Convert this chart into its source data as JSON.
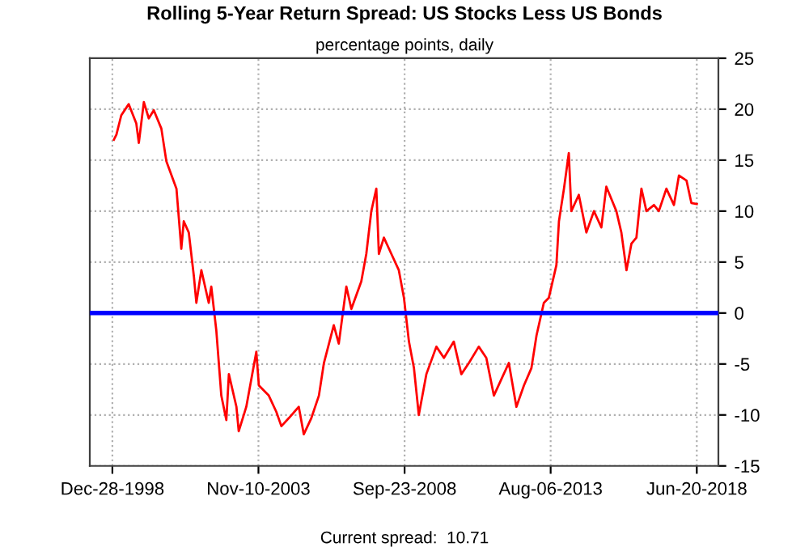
{
  "chart_data": {
    "type": "line",
    "title": "Rolling 5-Year Return Spread: US Stocks Less US Bonds",
    "subtitle": "percentage points, daily",
    "x": [
      "1999-01",
      "1999-02",
      "1999-04",
      "1999-07",
      "1999-10",
      "1999-11",
      "2000-01",
      "2000-03",
      "2000-05",
      "2000-08",
      "2000-10",
      "2001-02",
      "2001-04",
      "2001-05",
      "2001-07",
      "2001-09",
      "2001-10",
      "2001-12",
      "2002-03",
      "2002-04",
      "2002-06",
      "2002-08",
      "2002-10",
      "2002-11",
      "2003-02",
      "2003-03",
      "2003-06",
      "2003-10",
      "2003-11",
      "2004-03",
      "2004-06",
      "2004-08",
      "2004-11",
      "2005-03",
      "2005-05",
      "2005-08",
      "2005-11",
      "2006-01",
      "2006-05",
      "2006-07",
      "2006-10",
      "2006-12",
      "2007-04",
      "2007-06",
      "2007-08",
      "2007-10",
      "2007-11",
      "2008-01",
      "2008-04",
      "2008-07",
      "2008-09",
      "2008-11",
      "2009-01",
      "2009-03",
      "2009-06",
      "2009-10",
      "2010-01",
      "2010-05",
      "2010-08",
      "2010-11",
      "2011-03",
      "2011-06",
      "2011-09",
      "2011-12",
      "2012-03",
      "2012-06",
      "2012-09",
      "2012-12",
      "2013-02",
      "2013-05",
      "2013-07",
      "2013-10",
      "2013-11",
      "2014-01",
      "2014-03",
      "2014-04",
      "2014-07",
      "2014-10",
      "2015-01",
      "2015-04",
      "2015-06",
      "2015-10",
      "2015-12",
      "2016-02",
      "2016-04",
      "2016-06",
      "2016-08",
      "2016-10",
      "2017-01",
      "2017-03",
      "2017-06",
      "2017-09",
      "2017-11",
      "2018-02",
      "2018-04",
      "2018-06-20"
    ],
    "series": [
      {
        "color": "#ff0000",
        "values": [
          17.0,
          17.5,
          19.4,
          20.5,
          18.6,
          16.7,
          20.7,
          19.1,
          19.9,
          18.1,
          14.9,
          12.2,
          6.3,
          9.0,
          7.9,
          3.6,
          1.0,
          4.2,
          1.0,
          2.6,
          -1.7,
          -8.1,
          -10.5,
          -6.0,
          -9.2,
          -11.6,
          -9.2,
          -3.8,
          -7.1,
          -8.1,
          -9.7,
          -11.1,
          -10.3,
          -9.2,
          -11.9,
          -10.3,
          -8.1,
          -4.9,
          -1.2,
          -3.0,
          2.6,
          0.4,
          3.1,
          5.8,
          10.0,
          12.2,
          5.8,
          7.4,
          5.8,
          4.2,
          1.5,
          -2.8,
          -5.4,
          -10.0,
          -6.0,
          -3.3,
          -4.4,
          -2.8,
          -6.0,
          -4.9,
          -3.3,
          -4.4,
          -8.1,
          -6.5,
          -4.9,
          -9.2,
          -7.1,
          -5.4,
          -2.2,
          1.0,
          1.5,
          4.7,
          9.0,
          12.2,
          15.7,
          10.0,
          11.6,
          7.9,
          10.0,
          8.4,
          12.4,
          10.0,
          7.9,
          4.2,
          6.8,
          7.4,
          12.2,
          10.0,
          10.6,
          10.0,
          12.2,
          10.6,
          13.5,
          13.0,
          10.8,
          10.7
        ]
      }
    ],
    "xlim": [
      "1998-03-28",
      "2019-03-10"
    ],
    "xticks": [
      {
        "value": "1998-12-28",
        "label": "Dec-28-1998"
      },
      {
        "value": "2003-11-10",
        "label": "Nov-10-2003"
      },
      {
        "value": "2008-09-23",
        "label": "Sep-23-2008"
      },
      {
        "value": "2013-08-06",
        "label": "Aug-06-2013"
      },
      {
        "value": "2018-06-20",
        "label": "Jun-20-2018"
      }
    ],
    "ylim": [
      -15,
      25
    ],
    "yticks": [
      -15,
      -10,
      -5,
      0,
      5,
      10,
      15,
      20,
      25
    ],
    "grid": true,
    "ref_lines": [
      {
        "axis": "y",
        "value": 0,
        "color": "#0000ff"
      }
    ],
    "annotations": [
      "Current spread:  10.71"
    ]
  }
}
